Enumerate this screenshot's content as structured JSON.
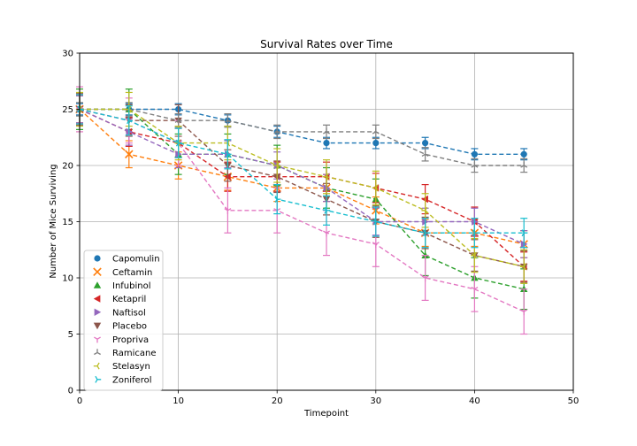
{
  "chart_data": {
    "type": "line",
    "title": "Survival Rates over Time",
    "xlabel": "Timepoint",
    "ylabel": "Number of Mice Surviving",
    "xlim": [
      0,
      50
    ],
    "ylim": [
      0,
      30
    ],
    "xticks": [
      "0",
      "10",
      "20",
      "30",
      "40",
      "50"
    ],
    "yticks": [
      "0",
      "5",
      "10",
      "15",
      "20",
      "25",
      "30"
    ],
    "grid": true,
    "legend_position": "lower-left",
    "x": [
      0,
      5,
      10,
      15,
      20,
      25,
      30,
      35,
      40,
      45
    ],
    "series": [
      {
        "name": "Capomulin",
        "marker": "circle",
        "color": "#1f77b4",
        "values": [
          25,
          25,
          25,
          24,
          23,
          22,
          22,
          22,
          21,
          21
        ],
        "errors": [
          0.5,
          0.5,
          0.5,
          0.5,
          0.5,
          0.5,
          0.5,
          0.5,
          0.5,
          0.5
        ]
      },
      {
        "name": "Ceftamin",
        "marker": "x",
        "color": "#ff7f0e",
        "values": [
          25,
          21,
          20,
          19,
          18,
          18,
          16,
          14,
          14,
          13
        ],
        "errors": [
          1.2,
          1.2,
          1.2,
          1.2,
          1.2,
          1.2,
          1.2,
          1.2,
          1.2,
          1.2
        ]
      },
      {
        "name": "Infubinol",
        "marker": "triangle-up",
        "color": "#2ca02c",
        "values": [
          25,
          25,
          21,
          21,
          20,
          18,
          17,
          12,
          10,
          9
        ],
        "errors": [
          1.8,
          1.8,
          1.8,
          1.8,
          1.8,
          1.8,
          1.8,
          1.8,
          1.8,
          1.8
        ]
      },
      {
        "name": "Ketapril",
        "marker": "triangle-left",
        "color": "#d62728",
        "values": [
          25,
          23,
          22,
          19,
          19,
          19,
          18,
          17,
          15,
          11
        ],
        "errors": [
          1.3,
          1.3,
          1.3,
          1.3,
          1.3,
          1.3,
          1.3,
          1.3,
          1.3,
          1.3
        ]
      },
      {
        "name": "Naftisol",
        "marker": "triangle-right",
        "color": "#9467bd",
        "values": [
          25,
          23,
          21,
          21,
          20,
          18,
          15,
          15,
          15,
          13
        ],
        "errors": [
          1.2,
          1.2,
          1.2,
          1.2,
          1.2,
          1.2,
          1.2,
          1.2,
          1.2,
          1.2
        ]
      },
      {
        "name": "Placebo",
        "marker": "triangle-down",
        "color": "#8c564b",
        "values": [
          25,
          24,
          24,
          20,
          19,
          17,
          15,
          14,
          12,
          11
        ],
        "errors": [
          1.4,
          1.4,
          1.4,
          1.4,
          1.4,
          1.4,
          1.4,
          1.4,
          1.4,
          1.4
        ]
      },
      {
        "name": "Propriva",
        "marker": "tri-down",
        "color": "#e377c2",
        "values": [
          25,
          24,
          22,
          16,
          16,
          14,
          13,
          10,
          9,
          7
        ],
        "errors": [
          2.0,
          2.0,
          2.0,
          2.0,
          2.0,
          2.0,
          2.0,
          2.0,
          2.0,
          2.0
        ]
      },
      {
        "name": "Ramicane",
        "marker": "tri-up",
        "color": "#7f7f7f",
        "values": [
          25,
          25,
          24,
          24,
          23,
          23,
          23,
          21,
          20,
          20
        ],
        "errors": [
          0.6,
          0.6,
          0.6,
          0.6,
          0.6,
          0.6,
          0.6,
          0.6,
          0.6,
          0.6
        ]
      },
      {
        "name": "Stelasyn",
        "marker": "tri-left",
        "color": "#bcbd22",
        "values": [
          25,
          25,
          22,
          22,
          20,
          19,
          18,
          16,
          12,
          11
        ],
        "errors": [
          1.5,
          1.5,
          1.5,
          1.5,
          1.5,
          1.5,
          1.5,
          1.5,
          1.5,
          1.5
        ]
      },
      {
        "name": "Zoniferol",
        "marker": "tri-right",
        "color": "#17becf",
        "values": [
          25,
          24,
          22,
          21,
          17,
          16,
          15,
          14,
          14,
          14
        ],
        "errors": [
          1.3,
          1.3,
          1.3,
          1.3,
          1.3,
          1.3,
          1.3,
          1.3,
          1.3,
          1.3
        ]
      }
    ]
  }
}
